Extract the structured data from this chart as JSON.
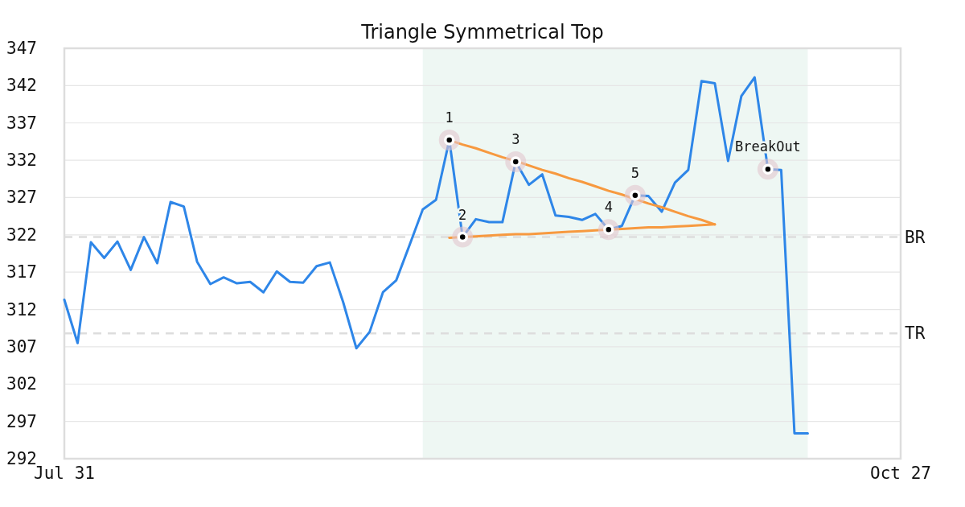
{
  "chart_data": {
    "type": "line",
    "title": "Triangle Symmetrical Top",
    "categories": [
      "Jul 31",
      null,
      null,
      null,
      null,
      null,
      null,
      null,
      null,
      null,
      null,
      null,
      null,
      null,
      null,
      null,
      null,
      null,
      null,
      null,
      null,
      null,
      null,
      null,
      null,
      null,
      null,
      null,
      null,
      null,
      null,
      null,
      null,
      null,
      null,
      null,
      null,
      null,
      null,
      null,
      null,
      null,
      null,
      null,
      null,
      null,
      null,
      null,
      null,
      null,
      null,
      null,
      null,
      null,
      null,
      null,
      null,
      null,
      null,
      null,
      null,
      null,
      null,
      "Oct 27"
    ],
    "ylim": [
      292,
      347
    ],
    "yticks": [
      292,
      297,
      302,
      307,
      312,
      317,
      322,
      327,
      332,
      337,
      342,
      347
    ],
    "grid": "y",
    "series": [
      {
        "color": "#2e86e8",
        "values": [
          313.3,
          307.5,
          321.0,
          318.9,
          321.1,
          317.3,
          321.7,
          318.2,
          326.4,
          325.8,
          318.4,
          315.4,
          316.3,
          315.5,
          315.7,
          314.3,
          317.1,
          315.7,
          315.6,
          317.8,
          318.3,
          313.0,
          306.8,
          309.0,
          314.3,
          315.9,
          320.6,
          325.4,
          326.7,
          334.7,
          321.7,
          324.1,
          323.7,
          323.7,
          331.8,
          328.7,
          330.1,
          324.6,
          324.4,
          324.0,
          324.8,
          322.7,
          323.2,
          327.3,
          327.2,
          325.1,
          329.0,
          330.7,
          342.6,
          342.3,
          331.9,
          340.6,
          343.1,
          330.8,
          330.7,
          295.4,
          295.4,
          null,
          null,
          null,
          null,
          null,
          null,
          null
        ]
      },
      {
        "type": "line",
        "color": "#f7993f",
        "values": [
          null,
          null,
          null,
          null,
          null,
          null,
          null,
          null,
          null,
          null,
          null,
          null,
          null,
          null,
          null,
          null,
          null,
          null,
          null,
          null,
          null,
          null,
          null,
          null,
          null,
          null,
          null,
          null,
          null,
          334.7,
          334.1,
          333.6,
          333.0,
          332.4,
          331.9,
          331.3,
          330.7,
          330.2,
          329.6,
          329.1,
          328.5,
          327.9,
          327.4,
          326.8,
          326.2,
          325.7,
          325.1,
          324.5,
          324.0,
          323.4,
          null,
          null,
          null,
          null,
          null,
          null,
          null,
          null,
          null,
          null,
          null,
          null,
          null,
          null
        ]
      },
      {
        "type": "line",
        "color": "#f7993f",
        "values": [
          null,
          null,
          null,
          null,
          null,
          null,
          null,
          null,
          null,
          null,
          null,
          null,
          null,
          null,
          null,
          null,
          null,
          null,
          null,
          null,
          null,
          null,
          null,
          null,
          null,
          null,
          null,
          null,
          null,
          321.6,
          321.7,
          321.8,
          321.9,
          322.0,
          322.1,
          322.1,
          322.2,
          322.3,
          322.4,
          322.5,
          322.6,
          322.7,
          322.8,
          322.9,
          323.0,
          323.0,
          323.1,
          323.2,
          323.3,
          323.4,
          null,
          null,
          null,
          null,
          null,
          null,
          null,
          null,
          null,
          null,
          null,
          null,
          null,
          null
        ]
      },
      {
        "type": "scatter",
        "color": "#000000",
        "marker": "circle",
        "values": [
          null,
          null,
          null,
          null,
          null,
          null,
          null,
          null,
          null,
          null,
          null,
          null,
          null,
          null,
          null,
          null,
          null,
          null,
          null,
          null,
          null,
          null,
          null,
          null,
          null,
          null,
          null,
          null,
          null,
          334.7,
          321.7,
          null,
          null,
          null,
          331.8,
          null,
          null,
          null,
          null,
          null,
          null,
          322.7,
          null,
          327.3,
          null,
          null,
          null,
          null,
          null,
          null,
          null,
          null,
          null,
          330.8,
          null,
          null,
          null,
          null,
          null,
          null,
          null,
          null,
          null,
          null
        ]
      }
    ],
    "ref_lines": [
      {
        "axis": "y",
        "value": 321.7,
        "label": "BR",
        "color": "#dddddd",
        "line_style": "dashed"
      },
      {
        "axis": "y",
        "value": 308.8,
        "label": "TR",
        "color": "#dddddd",
        "line_style": "dashed"
      }
    ],
    "annotations": [
      {
        "text": "1",
        "y": 334.7
      },
      {
        "text": "2",
        "y": 321.7
      },
      {
        "text": "3",
        "y": 331.8
      },
      {
        "text": "4",
        "y": 322.7
      },
      {
        "text": "5",
        "y": 327.3
      },
      {
        "text": "BreakOut",
        "y": 330.8
      }
    ]
  }
}
